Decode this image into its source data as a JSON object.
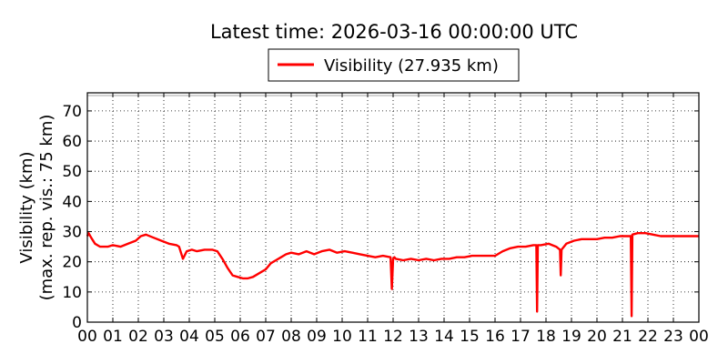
{
  "chart_data": {
    "type": "line",
    "title": "Latest time: 2026-03-16 00:00:00 UTC",
    "ylabel_line1": "Visibility (km)",
    "ylabel_line2": "(max. rep. vis.: 75 km)",
    "xlabel": "",
    "xlim": [
      0,
      24
    ],
    "ylim": [
      0,
      76
    ],
    "grid": true,
    "legend_position": "top-center",
    "x_ticks": [
      "00",
      "01",
      "02",
      "03",
      "04",
      "05",
      "06",
      "07",
      "08",
      "09",
      "10",
      "11",
      "12",
      "13",
      "14",
      "15",
      "16",
      "17",
      "18",
      "19",
      "20",
      "21",
      "22",
      "23",
      "00"
    ],
    "y_ticks": [
      0,
      10,
      20,
      30,
      40,
      50,
      60,
      70
    ],
    "series": [
      {
        "name": "Visibility (27.935 km)",
        "color": "#ff0000",
        "x": [
          0,
          0.05,
          0.15,
          0.3,
          0.5,
          0.8,
          1.0,
          1.3,
          1.6,
          1.9,
          2.1,
          2.3,
          2.6,
          2.9,
          3.2,
          3.5,
          3.6,
          3.75,
          3.9,
          4.1,
          4.3,
          4.6,
          4.9,
          5.1,
          5.3,
          5.5,
          5.7,
          5.9,
          6.1,
          6.3,
          6.5,
          6.8,
          7.0,
          7.2,
          7.4,
          7.6,
          7.8,
          8.0,
          8.3,
          8.6,
          8.9,
          9.2,
          9.5,
          9.8,
          10.1,
          10.4,
          10.7,
          11.0,
          11.3,
          11.6,
          11.9,
          11.95,
          12.0,
          12.05,
          12.1,
          12.4,
          12.7,
          13.0,
          13.3,
          13.6,
          13.9,
          14.2,
          14.5,
          14.8,
          15.1,
          15.4,
          15.7,
          16.0,
          16.3,
          16.6,
          16.9,
          17.2,
          17.5,
          17.62,
          17.65,
          17.68,
          17.8,
          18.1,
          18.4,
          18.55,
          18.58,
          18.61,
          18.8,
          19.1,
          19.4,
          19.7,
          20.0,
          20.3,
          20.6,
          20.9,
          21.2,
          21.33,
          21.36,
          21.39,
          21.6,
          21.9,
          22.2,
          22.5,
          22.8,
          23.1,
          23.4,
          23.7,
          24.0
        ],
        "y": [
          28.5,
          29.5,
          28.0,
          26.0,
          25.0,
          25.0,
          25.5,
          25.0,
          26.0,
          27.0,
          28.5,
          29.0,
          28.0,
          27.0,
          26.0,
          25.5,
          25.0,
          21.0,
          23.5,
          24.0,
          23.5,
          24.0,
          24.0,
          23.5,
          21.0,
          18.0,
          15.5,
          15.0,
          14.5,
          14.5,
          15.0,
          16.5,
          17.5,
          19.5,
          20.5,
          21.5,
          22.5,
          23.0,
          22.5,
          23.5,
          22.5,
          23.5,
          24.0,
          23.0,
          23.5,
          23.0,
          22.5,
          22.0,
          21.5,
          22.0,
          21.5,
          11.0,
          21.0,
          21.5,
          21.0,
          20.5,
          21.0,
          20.5,
          21.0,
          20.5,
          21.0,
          21.0,
          21.5,
          21.5,
          22.0,
          22.0,
          22.0,
          22.0,
          23.5,
          24.5,
          25.0,
          25.0,
          25.5,
          25.5,
          3.5,
          25.5,
          25.5,
          26.0,
          25.0,
          24.0,
          15.5,
          24.0,
          26.0,
          27.0,
          27.5,
          27.5,
          27.5,
          28.0,
          28.0,
          28.5,
          28.5,
          28.5,
          2.0,
          29.0,
          29.5,
          29.5,
          29.0,
          28.5,
          28.5,
          28.5,
          28.5,
          28.5,
          28.5
        ]
      }
    ]
  }
}
